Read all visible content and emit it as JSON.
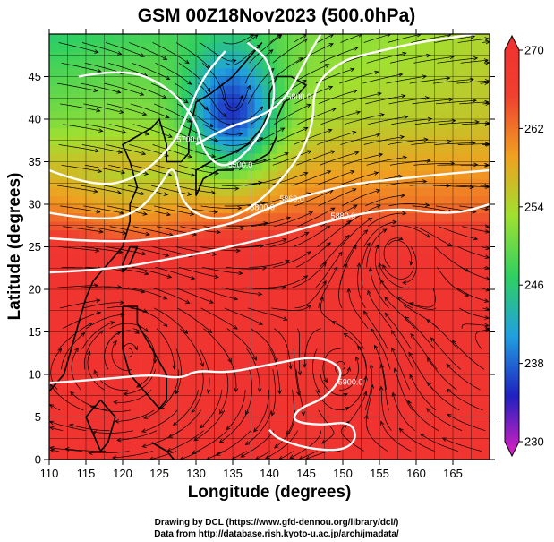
{
  "chart_data": {
    "type": "heatmap",
    "title": "GSM 00Z18Nov2023 (500.0hPa)",
    "xlabel": "Longitude (degrees)",
    "ylabel": "Latitude  (degrees)",
    "xlim": [
      110,
      170
    ],
    "ylim": [
      0,
      50
    ],
    "x_ticks": [
      110,
      115,
      120,
      125,
      130,
      135,
      140,
      145,
      150,
      155,
      160,
      165
    ],
    "y_ticks": [
      0,
      5,
      10,
      15,
      20,
      25,
      30,
      35,
      40,
      45
    ],
    "grid": true,
    "colorbar": {
      "range": [
        230,
        270
      ],
      "ticks": [
        230,
        238,
        246,
        254,
        262,
        270
      ],
      "colors": [
        "#e020c0",
        "#2020c0",
        "#20a0e0",
        "#30d060",
        "#a0e030",
        "#f0a020",
        "#f04030",
        "#f03030"
      ]
    },
    "contours": [
      {
        "label": "5500.0",
        "points": [
          [
            114,
            45
          ],
          [
            120,
            46
          ],
          [
            126,
            44
          ],
          [
            130,
            40
          ],
          [
            131,
            36
          ],
          [
            134,
            34
          ],
          [
            138,
            37
          ],
          [
            141,
            42
          ],
          [
            140,
            47
          ],
          [
            137,
            49
          ]
        ]
      },
      {
        "label": "5700.0",
        "points": [
          [
            110,
            34
          ],
          [
            116,
            32
          ],
          [
            122,
            33
          ],
          [
            127,
            37
          ],
          [
            129,
            41
          ],
          [
            131,
            45
          ],
          [
            134,
            48
          ]
        ]
      },
      {
        "label": "5800.0",
        "points": [
          [
            110,
            29
          ],
          [
            117,
            28
          ],
          [
            122,
            29
          ],
          [
            125,
            32
          ],
          [
            127,
            35
          ],
          [
            128,
            30
          ],
          [
            132,
            28
          ],
          [
            137,
            29
          ],
          [
            143,
            34
          ],
          [
            146,
            39
          ],
          [
            146,
            44
          ],
          [
            150,
            47
          ],
          [
            155,
            48
          ],
          [
            160,
            49
          ],
          [
            168,
            50
          ]
        ]
      },
      {
        "label": "5800.0",
        "points": [
          [
            130,
            37
          ],
          [
            134,
            39
          ],
          [
            138,
            40
          ],
          [
            142,
            42
          ],
          [
            145,
            47
          ],
          [
            147,
            50
          ]
        ]
      },
      {
        "label": "5860.0",
        "points": [
          [
            110,
            26
          ],
          [
            118,
            25.5
          ],
          [
            126,
            26
          ],
          [
            131,
            27
          ],
          [
            136,
            28
          ],
          [
            141,
            30
          ],
          [
            147,
            31.5
          ],
          [
            152,
            32.5
          ],
          [
            158,
            33
          ],
          [
            163,
            33.5
          ],
          [
            170,
            34
          ]
        ]
      },
      {
        "label": "5880.0",
        "points": [
          [
            110,
            22
          ],
          [
            118,
            22.3
          ],
          [
            126,
            23.5
          ],
          [
            132,
            24.5
          ],
          [
            137,
            25.5
          ],
          [
            142,
            26.5
          ],
          [
            148,
            28
          ],
          [
            153,
            29
          ],
          [
            158,
            29.5
          ],
          [
            162,
            29
          ],
          [
            166,
            29
          ],
          [
            170,
            30
          ]
        ]
      },
      {
        "label": "5900.0",
        "points": [
          [
            110,
            9
          ],
          [
            118,
            9.5
          ],
          [
            124,
            10
          ],
          [
            128,
            9.5
          ],
          [
            130,
            10.5
          ],
          [
            134,
            10.2
          ],
          [
            138,
            10.8
          ],
          [
            142,
            11.5
          ],
          [
            145,
            12
          ],
          [
            148,
            11.8
          ],
          [
            150,
            10.5
          ],
          [
            149,
            8.5
          ],
          [
            147,
            7
          ],
          [
            144,
            6
          ],
          [
            143,
            4.5
          ],
          [
            147,
            4
          ],
          [
            151,
            4.5
          ],
          [
            152,
            2.5
          ],
          [
            150,
            1
          ],
          [
            145,
            1.3
          ],
          [
            141,
            2.5
          ],
          [
            140,
            3.5
          ]
        ]
      }
    ],
    "wind": {
      "vortices": [
        {
          "x": 135,
          "y": 41,
          "strength": 1.0,
          "rotation": "cyclonic"
        },
        {
          "x": 157,
          "y": 25,
          "strength": 0.6,
          "rotation": "anticyclonic"
        },
        {
          "x": 121,
          "y": 13,
          "strength": 0.4,
          "rotation": "anticyclonic"
        },
        {
          "x": 150,
          "y": 11,
          "strength": 0.4,
          "rotation": "cyclonic"
        }
      ],
      "westerly_jet_lat": 40
    }
  },
  "credits": {
    "line1": "Drawing by DCL (https://www.gfd-dennou.org/library/dcl/)",
    "line2": "Data from http://database.rish.kyoto-u.ac.jp/arch/jmadata/"
  }
}
